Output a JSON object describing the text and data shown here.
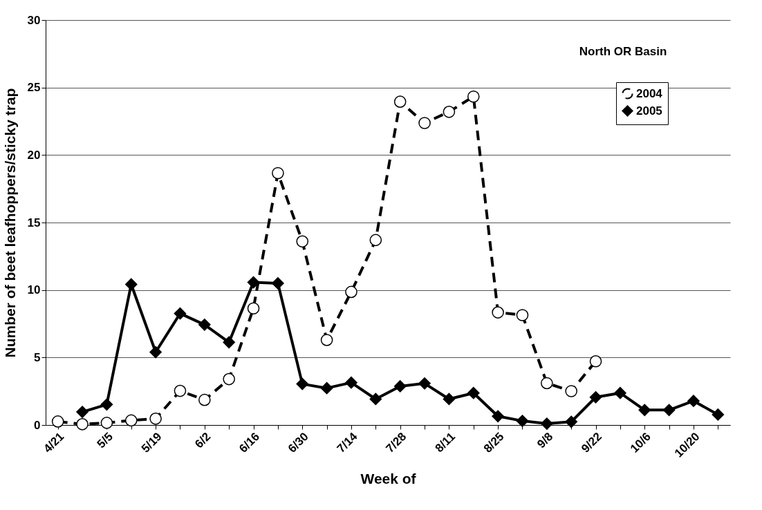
{
  "chart_data": {
    "type": "line",
    "xlabel": "Week of",
    "ylabel": "Number of beet leafhoppers/sticky trap",
    "annotations": [
      "North OR Basin"
    ],
    "categories": [
      "4/21",
      null,
      "5/5",
      null,
      "5/19",
      null,
      "6/2",
      null,
      "6/16",
      null,
      "6/30",
      null,
      "7/14",
      null,
      "7/28",
      null,
      "8/11",
      null,
      "8/25",
      null,
      "9/8",
      null,
      "9/22",
      null,
      "10/6",
      null,
      "10/20",
      null
    ],
    "series": [
      {
        "name": "2004",
        "color": "#000000",
        "marker": "circle",
        "line_style": "dashed",
        "values": [
          0.26,
          0.06,
          0.16,
          0.34,
          0.47,
          2.53,
          1.86,
          3.4,
          8.64,
          18.66,
          13.6,
          6.3,
          9.86,
          13.7,
          23.95,
          22.37,
          23.2,
          24.33,
          8.34,
          8.14,
          3.1,
          2.51,
          4.72,
          null,
          null,
          null,
          null,
          null
        ]
      },
      {
        "name": "2005",
        "color": "#000000",
        "marker": "diamond",
        "line_style": "solid",
        "values": [
          null,
          0.97,
          1.52,
          10.42,
          5.4,
          8.26,
          7.43,
          6.13,
          10.57,
          10.5,
          3.04,
          2.73,
          3.14,
          1.92,
          2.87,
          3.08,
          1.92,
          2.37,
          0.65,
          0.3,
          0.1,
          0.24,
          2.06,
          2.37,
          1.11,
          1.11,
          1.78,
          0.77
        ]
      }
    ],
    "ylim": [
      0,
      30
    ],
    "yticks": [
      0,
      5,
      10,
      15,
      20,
      25,
      30
    ],
    "grid": "y",
    "legend": "top right"
  }
}
